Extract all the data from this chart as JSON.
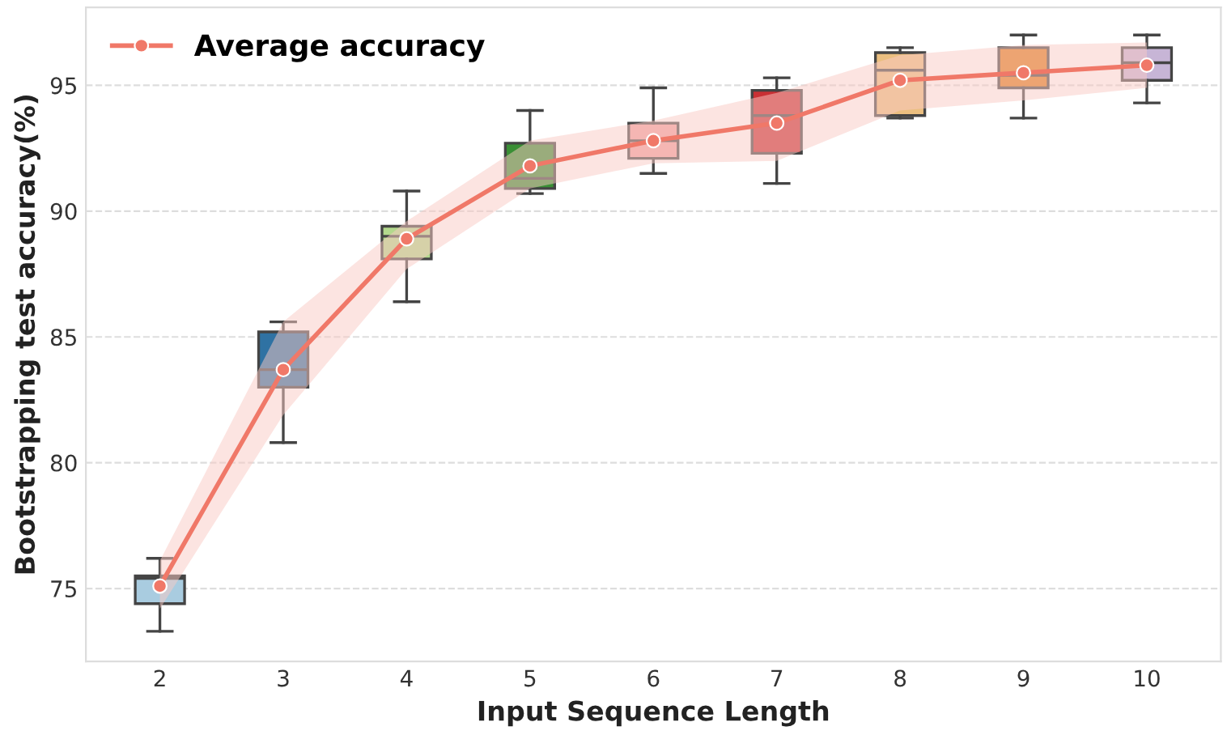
{
  "chart_data": {
    "type": "box",
    "xlabel": "Input Sequence Length",
    "ylabel": "Bootstrapping test accuracy(%)",
    "categories": [
      "2",
      "3",
      "4",
      "5",
      "6",
      "7",
      "8",
      "9",
      "10"
    ],
    "colors": [
      "#a9cce0",
      "#2f72a3",
      "#b3d98d",
      "#3a8f35",
      "#f0a3a3",
      "#c93034",
      "#ebbf80",
      "#e07f20",
      "#c7b5d6"
    ],
    "boxes": [
      {
        "low": 73.3,
        "q1": 74.4,
        "median": 75.4,
        "q3": 75.5,
        "high": 76.2
      },
      {
        "low": 80.8,
        "q1": 83.0,
        "median": 83.7,
        "q3": 85.2,
        "high": 85.6
      },
      {
        "low": 86.4,
        "q1": 88.1,
        "median": 89.0,
        "q3": 89.4,
        "high": 90.8
      },
      {
        "low": 90.7,
        "q1": 90.9,
        "median": 91.3,
        "q3": 92.7,
        "high": 94.0
      },
      {
        "low": 91.5,
        "q1": 92.1,
        "median": 92.8,
        "q3": 93.5,
        "high": 94.9
      },
      {
        "low": 91.1,
        "q1": 92.3,
        "median": 93.8,
        "q3": 94.8,
        "high": 95.3
      },
      {
        "low": 93.7,
        "q1": 93.8,
        "median": 95.6,
        "q3": 96.3,
        "high": 96.5
      },
      {
        "low": 93.7,
        "q1": 94.9,
        "median": 95.4,
        "q3": 96.5,
        "high": 97.0
      },
      {
        "low": 94.3,
        "q1": 95.2,
        "median": 95.9,
        "q3": 96.5,
        "high": 97.0
      }
    ],
    "series": [
      {
        "type": "line",
        "name": "Average accuracy",
        "color": "#f07868",
        "values": [
          75.1,
          83.7,
          88.9,
          91.8,
          92.8,
          93.5,
          95.2,
          95.5,
          95.8
        ],
        "lower": [
          74.2,
          81.9,
          87.7,
          90.9,
          91.9,
          92.0,
          94.0,
          94.4,
          94.9
        ],
        "upper": [
          76.1,
          85.6,
          89.6,
          92.8,
          93.6,
          94.7,
          96.2,
          96.6,
          96.7
        ]
      }
    ],
    "ylim": [
      72.1,
      98.1
    ],
    "yticks": [
      75,
      80,
      85,
      90,
      95
    ],
    "grid": "y",
    "legend": "top left",
    "marker": "circle",
    "line_style": "solid"
  }
}
